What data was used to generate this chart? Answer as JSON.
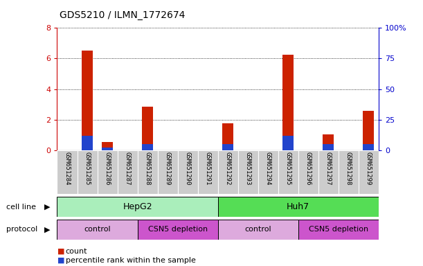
{
  "title": "GDS5210 / ILMN_1772674",
  "samples": [
    "GSM651284",
    "GSM651285",
    "GSM651286",
    "GSM651287",
    "GSM651288",
    "GSM651289",
    "GSM651290",
    "GSM651291",
    "GSM651292",
    "GSM651293",
    "GSM651294",
    "GSM651295",
    "GSM651296",
    "GSM651297",
    "GSM651298",
    "GSM651299"
  ],
  "counts": [
    0.0,
    6.5,
    0.55,
    0.0,
    2.85,
    0.0,
    0.0,
    0.0,
    1.75,
    0.0,
    0.0,
    6.25,
    0.0,
    1.05,
    0.0,
    2.6
  ],
  "percentile_pct": [
    0,
    12,
    2,
    0,
    5,
    0,
    0,
    0,
    5,
    0,
    0,
    12,
    0,
    5,
    0,
    5
  ],
  "ylim_left": [
    0,
    8
  ],
  "ylim_right": [
    0,
    100
  ],
  "yticks_left": [
    0,
    2,
    4,
    6,
    8
  ],
  "yticks_right": [
    0,
    25,
    50,
    75,
    100
  ],
  "ytick_labels_right": [
    "0",
    "25",
    "50",
    "75",
    "100%"
  ],
  "count_color": "#cc2200",
  "percentile_color": "#2244cc",
  "cell_line_hepg2_color": "#aaeebb",
  "cell_line_huh7_color": "#55dd55",
  "protocol_control_color": "#ddaadd",
  "protocol_csn5_color": "#cc55cc",
  "cell_line_label": "cell line",
  "protocol_label": "protocol",
  "legend_count_label": "count",
  "legend_percentile_label": "percentile rank within the sample",
  "bg_color": "#ffffff",
  "sample_box_color": "#cccccc",
  "left_axis_color": "#cc0000",
  "right_axis_color": "#0000cc"
}
